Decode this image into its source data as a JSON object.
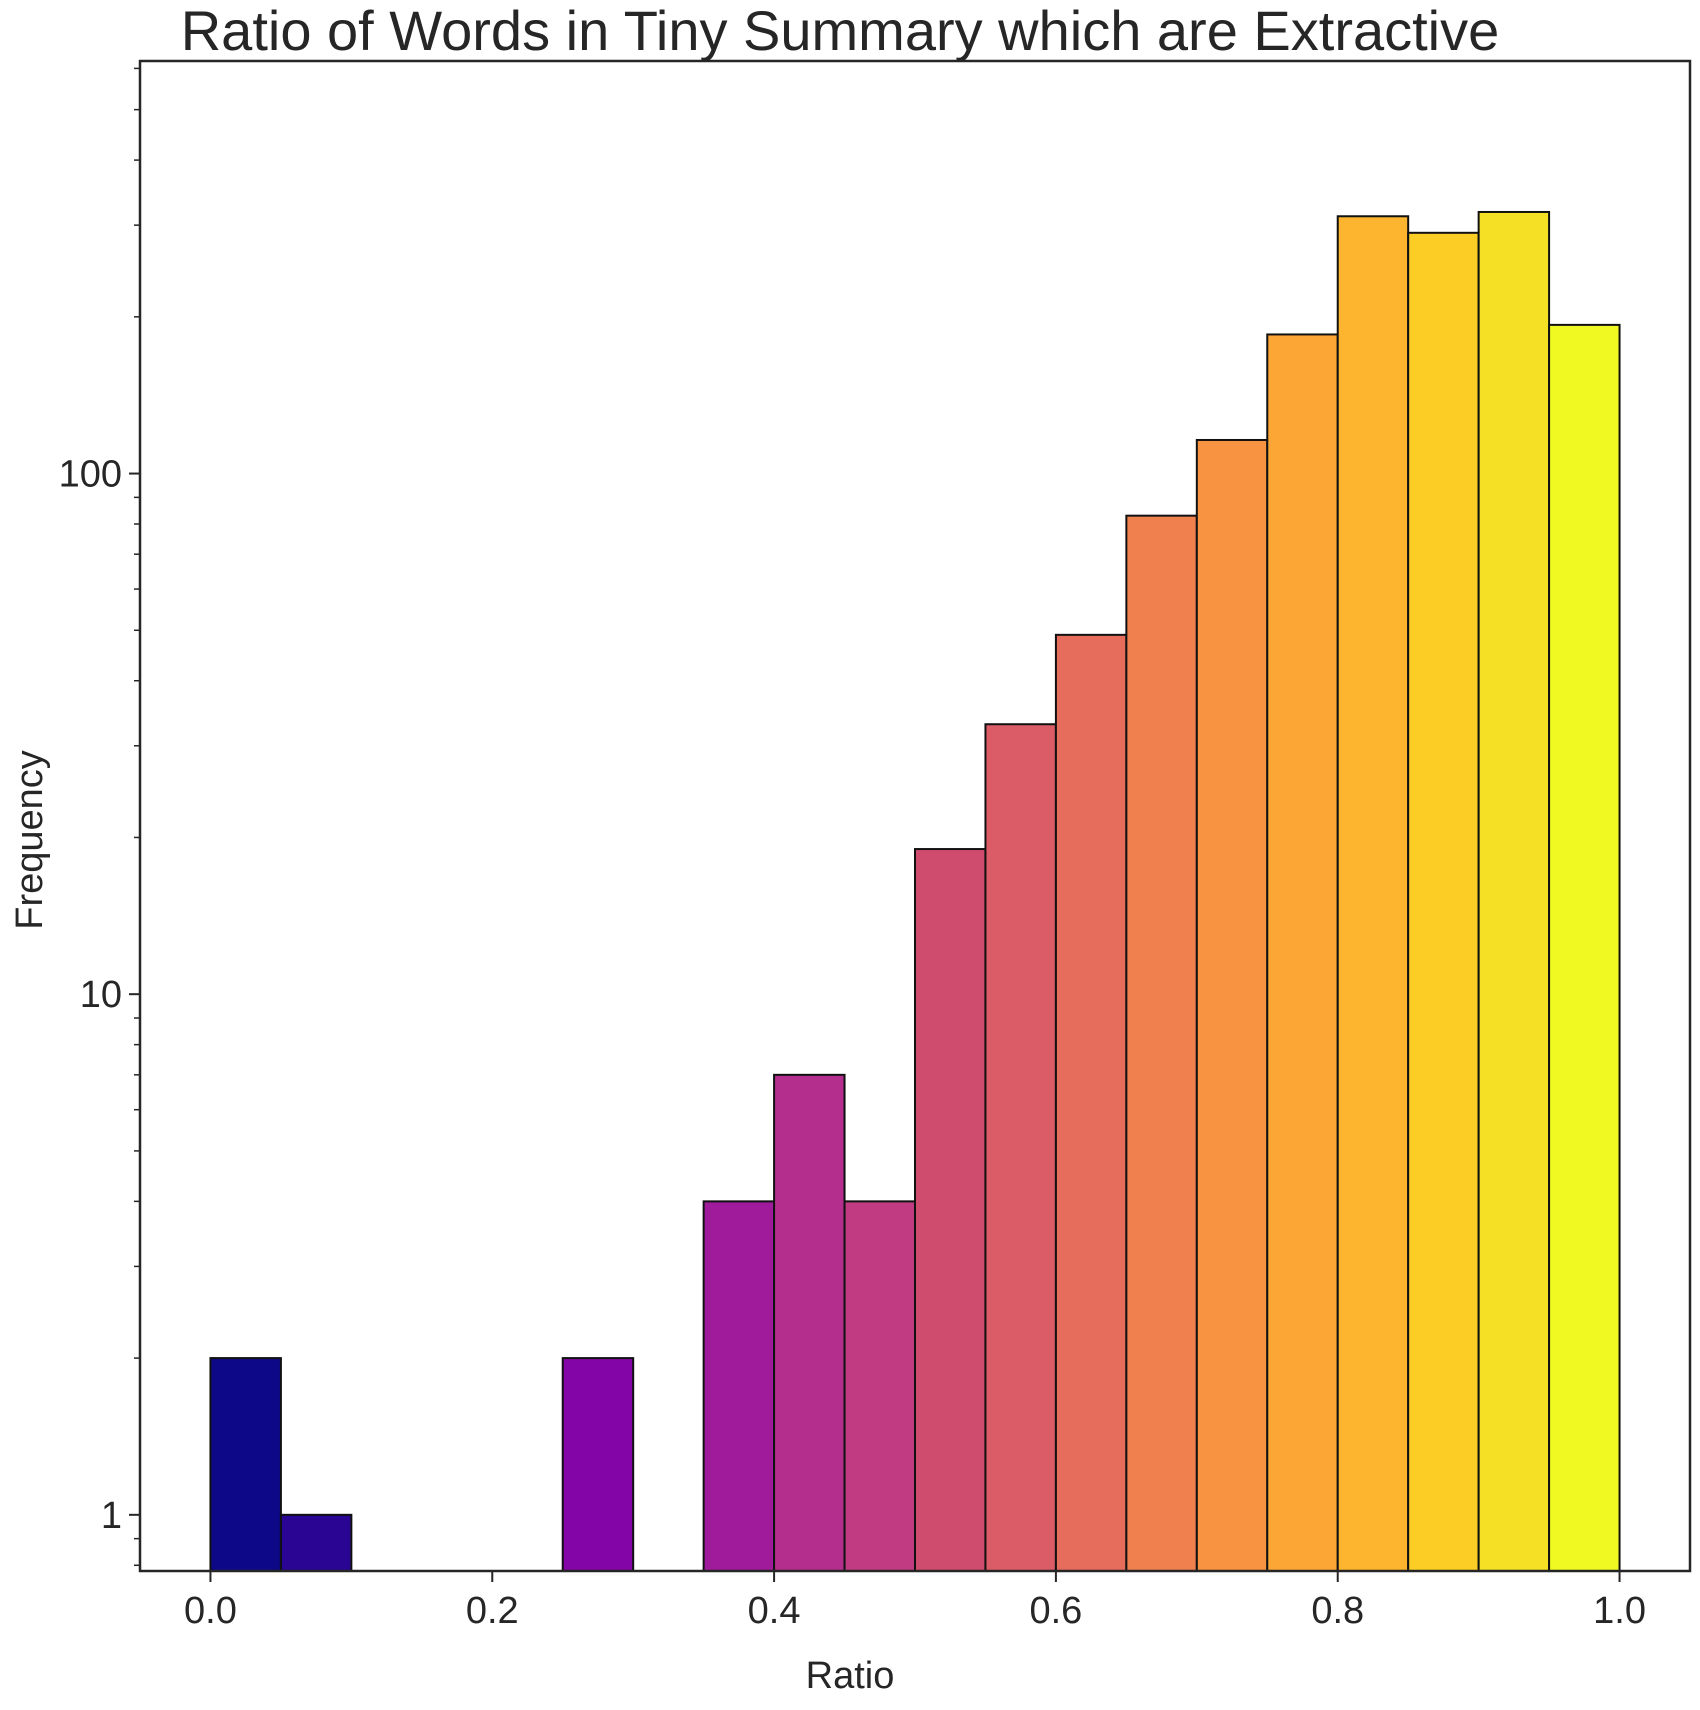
{
  "chart_data": {
    "type": "bar",
    "title": "Ratio of Words in Tiny Summary which are Extractive",
    "xlabel": "Ratio",
    "ylabel": "Frequency",
    "y_scale": "log",
    "xlim": [
      -0.05,
      1.05
    ],
    "ylim": [
      0.78,
      620
    ],
    "grid": false,
    "x_ticks": [
      0.0,
      0.2,
      0.4,
      0.6,
      0.8,
      1.0
    ],
    "x_tick_labels": [
      "0.0",
      "0.2",
      "0.4",
      "0.6",
      "0.8",
      "1.0"
    ],
    "y_ticks": [
      1,
      10,
      100
    ],
    "y_tick_labels": [
      "1",
      "10",
      "100"
    ],
    "bins": [
      {
        "x0": 0.0,
        "x1": 0.05,
        "count": 2,
        "color": "#0d0887"
      },
      {
        "x0": 0.05,
        "x1": 0.1,
        "count": 1,
        "color": "#2a0593"
      },
      {
        "x0": 0.1,
        "x1": 0.15,
        "count": 0,
        "color": "#41049d"
      },
      {
        "x0": 0.15,
        "x1": 0.2,
        "count": 0,
        "color": "#5601a4"
      },
      {
        "x0": 0.2,
        "x1": 0.25,
        "count": 0,
        "color": "#6a00a8"
      },
      {
        "x0": 0.25,
        "x1": 0.3,
        "count": 2,
        "color": "#8405a7"
      },
      {
        "x0": 0.3,
        "x1": 0.35,
        "count": 0,
        "color": "#8f0da4"
      },
      {
        "x0": 0.35,
        "x1": 0.4,
        "count": 4,
        "color": "#a01a9c"
      },
      {
        "x0": 0.4,
        "x1": 0.45,
        "count": 7,
        "color": "#b42e8d"
      },
      {
        "x0": 0.45,
        "x1": 0.5,
        "count": 4,
        "color": "#c13b82"
      },
      {
        "x0": 0.5,
        "x1": 0.55,
        "count": 19,
        "color": "#cf4c6f"
      },
      {
        "x0": 0.55,
        "x1": 0.6,
        "count": 33,
        "color": "#db5b66"
      },
      {
        "x0": 0.6,
        "x1": 0.65,
        "count": 49,
        "color": "#e66c5c"
      },
      {
        "x0": 0.65,
        "x1": 0.7,
        "count": 83,
        "color": "#f0804e"
      },
      {
        "x0": 0.7,
        "x1": 0.75,
        "count": 116,
        "color": "#f89441"
      },
      {
        "x0": 0.75,
        "x1": 0.8,
        "count": 185,
        "color": "#fca636"
      },
      {
        "x0": 0.8,
        "x1": 0.85,
        "count": 312,
        "color": "#fdb42f"
      },
      {
        "x0": 0.85,
        "x1": 0.9,
        "count": 290,
        "color": "#fccd25"
      },
      {
        "x0": 0.9,
        "x1": 0.95,
        "count": 318,
        "color": "#f5e026"
      },
      {
        "x0": 0.95,
        "x1": 1.0,
        "count": 193,
        "color": "#f0f921"
      }
    ]
  }
}
